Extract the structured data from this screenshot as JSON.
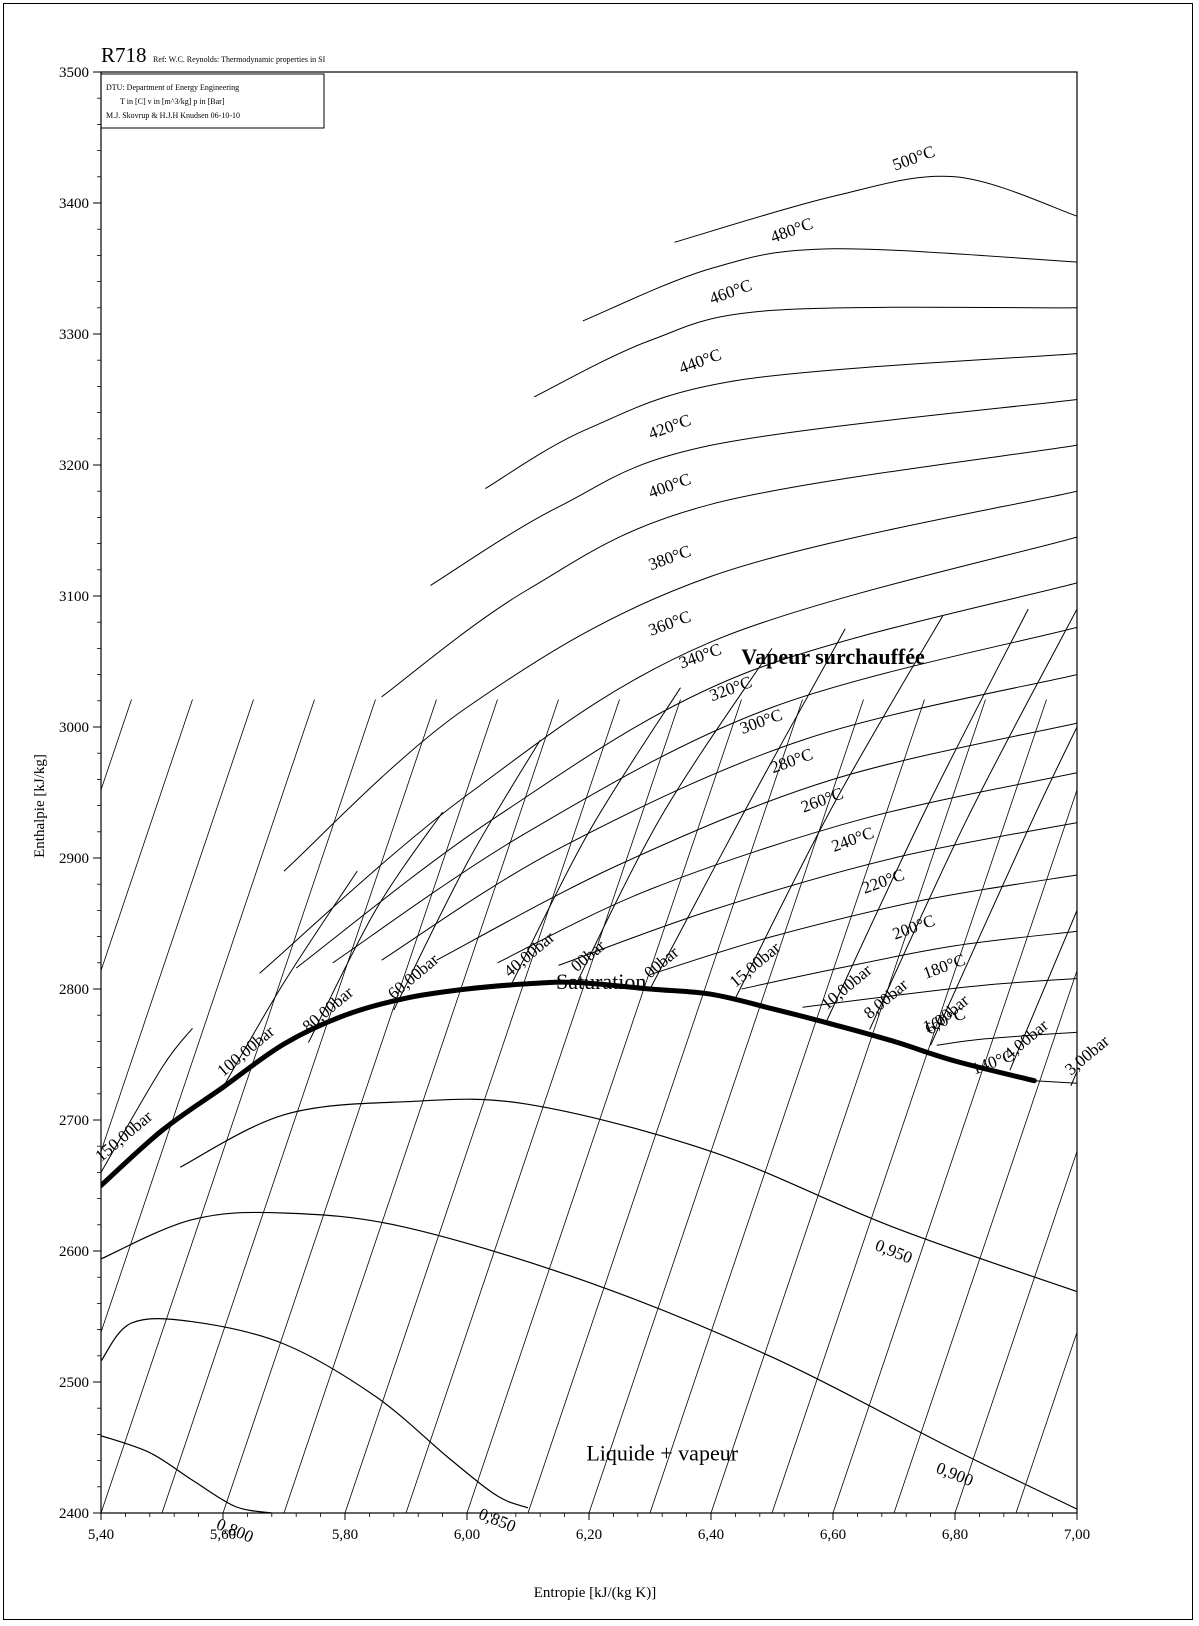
{
  "chart_data": {
    "type": "line",
    "title": "R718",
    "subtitle": "Ref: W.C. Reynolds: Thermodynamic properties in SI",
    "info_box": [
      "DTU: Department of Energy Engineering",
      "T in [C] v in [m^3/kg] p in [Bar]",
      "M.J. Skovrup & H.J.H Knudsen 06-10-10"
    ],
    "xlabel": "Entropie [kJ/(kg K)]",
    "ylabel": "Enthalpie [kJ/kg]",
    "xlim": [
      5.4,
      7.0
    ],
    "ylim": [
      2400,
      3500
    ],
    "x_ticks": [
      "5,40",
      "5,60",
      "5,80",
      "6,00",
      "6,20",
      "6,40",
      "6,60",
      "6,80",
      "7,00"
    ],
    "y_ticks": [
      "2400",
      "2500",
      "2600",
      "2700",
      "2800",
      "2900",
      "3000",
      "3100",
      "3200",
      "3300",
      "3400",
      "3500"
    ],
    "grid": false,
    "saturation_curve": {
      "name": "Saturation",
      "x": [
        5.4,
        5.5,
        5.6,
        5.7,
        5.8,
        5.9,
        6.0,
        6.1,
        6.18,
        6.3,
        6.4,
        6.5,
        6.6,
        6.7,
        6.8,
        6.93
      ],
      "y": [
        2650,
        2692,
        2725,
        2758,
        2780,
        2793,
        2800,
        2804,
        2805,
        2800,
        2796,
        2785,
        2773,
        2760,
        2745,
        2730
      ]
    },
    "isotherms": [
      {
        "name": "140°C",
        "x": [
          6.93,
          7.0
        ],
        "y": [
          2730,
          2728
        ]
      },
      {
        "name": "160°C",
        "x": [
          6.77,
          6.85,
          7.0
        ],
        "y": [
          2757,
          2762,
          2767
        ]
      },
      {
        "name": "180°C",
        "x": [
          6.55,
          6.7,
          6.85,
          7.0
        ],
        "y": [
          2786,
          2795,
          2803,
          2808
        ]
      },
      {
        "name": "200°C",
        "x": [
          6.45,
          6.6,
          6.8,
          7.0
        ],
        "y": [
          2800,
          2815,
          2833,
          2844
        ]
      },
      {
        "name": "220°C",
        "x": [
          6.3,
          6.5,
          6.75,
          7.0
        ],
        "y": [
          2811,
          2840,
          2868,
          2887
        ]
      },
      {
        "name": "240°C",
        "x": [
          6.15,
          6.4,
          6.7,
          7.0
        ],
        "y": [
          2818,
          2860,
          2900,
          2927
        ]
      },
      {
        "name": "260°C",
        "x": [
          6.05,
          6.3,
          6.65,
          7.0
        ],
        "y": [
          2820,
          2876,
          2930,
          2965
        ]
      },
      {
        "name": "280°C",
        "x": [
          5.95,
          6.25,
          6.6,
          7.0
        ],
        "y": [
          2822,
          2895,
          2960,
          3003
        ]
      },
      {
        "name": "300°C",
        "x": [
          5.86,
          6.15,
          6.55,
          7.0
        ],
        "y": [
          2822,
          2907,
          2990,
          3040
        ]
      },
      {
        "name": "320°C",
        "x": [
          5.78,
          6.1,
          6.5,
          7.0
        ],
        "y": [
          2820,
          2920,
          3015,
          3076
        ]
      },
      {
        "name": "340°C",
        "x": [
          5.72,
          6.05,
          6.45,
          7.0
        ],
        "y": [
          2816,
          2932,
          3040,
          3110
        ]
      },
      {
        "name": "360°C",
        "x": [
          5.66,
          6.0,
          6.4,
          7.0
        ],
        "y": [
          2812,
          2948,
          3065,
          3145
        ]
      },
      {
        "name": "380°C",
        "x": [
          5.7,
          6.0,
          6.4,
          7.0
        ],
        "y": [
          2890,
          3015,
          3115,
          3180
        ]
      },
      {
        "name": "400°C",
        "x": [
          5.86,
          6.1,
          6.4,
          7.0
        ],
        "y": [
          3023,
          3105,
          3170,
          3215
        ]
      },
      {
        "name": "420°C",
        "x": [
          5.94,
          6.15,
          6.4,
          7.0
        ],
        "y": [
          3108,
          3168,
          3215,
          3250
        ]
      },
      {
        "name": "440°C",
        "x": [
          6.03,
          6.2,
          6.45,
          7.0
        ],
        "y": [
          3182,
          3228,
          3265,
          3285
        ]
      },
      {
        "name": "460°C",
        "x": [
          6.11,
          6.3,
          6.5,
          7.0
        ],
        "y": [
          3252,
          3295,
          3318,
          3320
        ]
      },
      {
        "name": "480°C",
        "x": [
          6.19,
          6.4,
          6.6,
          7.0
        ],
        "y": [
          3310,
          3350,
          3365,
          3355
        ]
      },
      {
        "name": "500°C",
        "x": [
          6.34,
          6.6,
          6.8,
          7.0
        ],
        "y": [
          3370,
          3405,
          3420,
          3390
        ]
      }
    ],
    "isobars": [
      {
        "name": "150,00bar",
        "x": [
          5.4,
          5.5,
          5.55
        ],
        "y": [
          2660,
          2740,
          2770
        ]
      },
      {
        "name": "100,00bar",
        "x": [
          5.6,
          5.7,
          5.82
        ],
        "y": [
          2725,
          2805,
          2890
        ]
      },
      {
        "name": "80,00bar",
        "x": [
          5.74,
          5.85,
          5.96
        ],
        "y": [
          2759,
          2860,
          2935
        ]
      },
      {
        "name": "60,00bar",
        "x": [
          5.88,
          6.0,
          6.12
        ],
        "y": [
          2784,
          2896,
          2990
        ]
      },
      {
        "name": "40,00bar",
        "x": [
          6.07,
          6.2,
          6.35
        ],
        "y": [
          2801,
          2920,
          3030
        ]
      },
      {
        "name": "00bar",
        "x": [
          6.18,
          6.32,
          6.5
        ],
        "y": [
          2805,
          2933,
          3060
        ]
      },
      {
        "name": "00bar",
        "x": [
          6.3,
          6.46,
          6.62
        ],
        "y": [
          2800,
          2940,
          3075
        ]
      },
      {
        "name": "15,00bar",
        "x": [
          6.44,
          6.6,
          6.78
        ],
        "y": [
          2793,
          2940,
          3085
        ]
      },
      {
        "name": "10,00bar",
        "x": [
          6.59,
          6.75,
          6.92
        ],
        "y": [
          2776,
          2935,
          3090
        ]
      },
      {
        "name": "8,00bar",
        "x": [
          6.66,
          6.82,
          7.0
        ],
        "y": [
          2769,
          2930,
          3090
        ]
      },
      {
        "name": "6,00bar",
        "x": [
          6.76,
          6.92,
          7.0
        ],
        "y": [
          2757,
          2922,
          3000
        ]
      },
      {
        "name": "4,00bar",
        "x": [
          6.89,
          7.0
        ],
        "y": [
          2738,
          2860
        ]
      },
      {
        "name": "3,00bar",
        "x": [
          6.99,
          7.0
        ],
        "y": [
          2726,
          2737
        ]
      }
    ],
    "quality_lines": [
      {
        "name": "0,950",
        "x": [
          5.53,
          5.7,
          5.9,
          6.1,
          6.4,
          6.7,
          7.0
        ],
        "y": [
          2664,
          2704,
          2714,
          2712,
          2676,
          2618,
          2569
        ]
      },
      {
        "name": "0,900",
        "x": [
          5.4,
          5.55,
          5.7,
          5.9,
          6.2,
          6.5,
          6.8,
          7.0
        ],
        "y": [
          2594,
          2624,
          2629,
          2618,
          2576,
          2519,
          2448,
          2403
        ]
      },
      {
        "name": "0,850",
        "x": [
          5.4,
          5.45,
          5.55,
          5.7,
          5.85,
          5.97,
          6.05,
          6.1
        ],
        "y": [
          2516,
          2545,
          2546,
          2529,
          2489,
          2442,
          2413,
          2404
        ]
      },
      {
        "name": "0,800",
        "x": [
          5.4,
          5.48,
          5.55,
          5.62,
          5.68
        ],
        "y": [
          2459,
          2446,
          2425,
          2405,
          2400
        ]
      }
    ],
    "annotations": [
      {
        "text": "Vapeur surchauffée",
        "x": 6.6,
        "y": 3048
      },
      {
        "text": "Saturation",
        "x": 6.22,
        "y": 2800
      },
      {
        "text": "Liquide + vapeur",
        "x": 6.32,
        "y": 2440
      }
    ]
  }
}
